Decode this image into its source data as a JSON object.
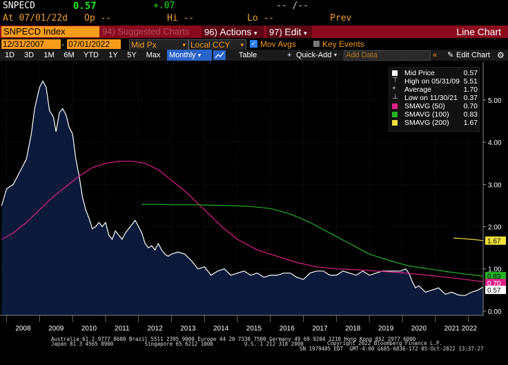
{
  "header": {
    "ticker": "SNPECD",
    "last": "0.57",
    "change": "+.07",
    "range_sep": "-- /--",
    "at_label": "At 07/01/22d",
    "op_label": "Op --",
    "hi_label": "Hi --",
    "lo_label": "Lo --",
    "prev_label": "Prev"
  },
  "toolbar": {
    "security": "SNPECD Index",
    "suggested": "Suggested Charts",
    "suggested_num": "94)",
    "actions_num": "96)",
    "actions": "Actions",
    "edit_num": "97)",
    "edit": "Edit",
    "chart_type": "Line Chart"
  },
  "options": {
    "start_date": "12/31/2007",
    "dash": "-",
    "end_date": "07/01/2022",
    "field": "Mid Px",
    "currency": "Local CCY",
    "mov_avgs": "Mov Avgs",
    "key_events": "Key Events"
  },
  "periods": {
    "p1d": "1D",
    "p3d": "3D",
    "p1m": "1M",
    "p6m": "6M",
    "pytd": "YTD",
    "p1y": "1Y",
    "p5y": "5Y",
    "pmax": "Max",
    "frequency": "Monthly",
    "table": "Table",
    "quick_add": "Quick-Add",
    "add_data_placeholder": "Add Data",
    "edit_chart": "Edit Chart"
  },
  "legend": {
    "mid": {
      "label": "Mid Price",
      "value": "0.57"
    },
    "high": {
      "label": "High on 05/31/09",
      "value": "5.51"
    },
    "avg": {
      "label": "Average",
      "value": "1.70"
    },
    "low": {
      "label": "Low on 11/30/21",
      "value": "0.37"
    },
    "s50": {
      "label": "SMAVG (50)",
      "value": "0.70"
    },
    "s100": {
      "label": "SMAVG (100)",
      "value": "0.83"
    },
    "s200": {
      "label": "SMAVG (200)",
      "value": "1.67"
    }
  },
  "footer": {
    "line1": "Australia 61 2 9777 8600 Brazil 5511 2395 9000 Europe 44 20 7330 7500 Germany 49 69 9204 1210 Hong Kong 852 2977 6000",
    "line2": "Japan 81 3 4565 8900          Singapore 65 6212 1000          U.S. 1 212 318 2000",
    "line3": "Copyright 2022 Bloomberg Finance L.P.",
    "line4": "SN 1979405 EDT  GMT-4:00 G685-6836-172 05-Oct-2022 13:37:27"
  },
  "colors": {
    "price_fill": "#0b1a3a",
    "price_line": "#ffffff",
    "s50": "#e0208a",
    "s100": "#24b324",
    "s200": "#f2e23a",
    "axis_text": "#ffffff"
  },
  "chart_data": {
    "type": "area",
    "ylim": [
      -0.1,
      5.9
    ],
    "xlim": [
      2007.8,
      2022.45
    ],
    "y_ticks": [
      "0.00",
      "1.00",
      "2.00",
      "3.00",
      "4.00",
      "5.00"
    ],
    "x_ticks": [
      "2008",
      "2009",
      "2010",
      "2011",
      "2012",
      "2013",
      "2014",
      "2015",
      "2016",
      "2017",
      "2018",
      "2019",
      "2020",
      "2021",
      "2022"
    ],
    "last_labels": [
      {
        "text": "1.67",
        "series": "SMAVG (200)"
      },
      {
        "text": "0.83",
        "series": "SMAVG (100)"
      },
      {
        "text": "0.70",
        "series": "SMAVG (50)"
      },
      {
        "text": "0.57",
        "series": "Mid Price"
      }
    ],
    "series": [
      {
        "name": "Mid Price",
        "x": [
          2007.85,
          2008.0,
          2008.2,
          2008.4,
          2008.6,
          2008.75,
          2008.85,
          2009.0,
          2009.1,
          2009.2,
          2009.3,
          2009.42,
          2009.5,
          2009.6,
          2009.7,
          2009.8,
          2009.9,
          2010.0,
          2010.1,
          2010.2,
          2010.3,
          2010.4,
          2010.5,
          2010.6,
          2010.7,
          2010.8,
          2010.9,
          2011.0,
          2011.1,
          2011.2,
          2011.3,
          2011.4,
          2011.5,
          2011.6,
          2011.7,
          2011.8,
          2011.9,
          2012.0,
          2012.1,
          2012.2,
          2012.3,
          2012.4,
          2012.5,
          2012.6,
          2012.7,
          2012.8,
          2012.9,
          2013.0,
          2013.2,
          2013.4,
          2013.6,
          2013.8,
          2014.0,
          2014.2,
          2014.4,
          2014.6,
          2014.8,
          2015.0,
          2015.2,
          2015.4,
          2015.6,
          2015.8,
          2016.0,
          2016.2,
          2016.4,
          2016.6,
          2016.8,
          2017.0,
          2017.2,
          2017.4,
          2017.6,
          2017.8,
          2018.0,
          2018.2,
          2018.4,
          2018.6,
          2018.8,
          2019.0,
          2019.2,
          2019.4,
          2019.6,
          2019.8,
          2019.95,
          2020.1,
          2020.2,
          2020.3,
          2020.4,
          2020.5,
          2020.7,
          2020.9,
          2021.1,
          2021.3,
          2021.5,
          2021.7,
          2021.9,
          2022.1,
          2022.3,
          2022.45
        ],
        "y": [
          2.5,
          2.9,
          3.0,
          3.3,
          3.6,
          4.2,
          4.8,
          5.3,
          5.45,
          5.3,
          4.75,
          4.6,
          4.25,
          4.7,
          4.8,
          4.65,
          4.35,
          4.2,
          3.6,
          3.2,
          2.7,
          2.4,
          2.2,
          1.95,
          2.0,
          2.1,
          2.0,
          2.1,
          1.8,
          1.7,
          1.9,
          1.8,
          1.7,
          1.85,
          1.95,
          2.05,
          2.15,
          2.0,
          1.85,
          1.6,
          1.5,
          1.55,
          1.45,
          1.6,
          1.45,
          1.35,
          1.3,
          1.35,
          1.4,
          1.35,
          1.2,
          1.0,
          1.05,
          0.85,
          0.95,
          1.0,
          0.85,
          0.9,
          0.95,
          0.85,
          0.9,
          0.8,
          0.85,
          0.85,
          0.9,
          0.9,
          0.8,
          0.75,
          0.9,
          0.95,
          0.95,
          0.85,
          0.85,
          0.95,
          0.9,
          0.85,
          0.95,
          0.85,
          0.9,
          0.95,
          0.95,
          0.95,
          0.95,
          1.0,
          0.9,
          0.7,
          0.55,
          0.6,
          0.45,
          0.5,
          0.55,
          0.4,
          0.45,
          0.38,
          0.37,
          0.45,
          0.5,
          0.57
        ]
      },
      {
        "name": "SMAVG (50)",
        "x": [
          2007.85,
          2008.2,
          2008.6,
          2009.0,
          2009.4,
          2009.8,
          2010.2,
          2010.6,
          2011.0,
          2011.4,
          2011.8,
          2012.2,
          2012.6,
          2013.0,
          2013.4,
          2013.8,
          2014.2,
          2014.6,
          2015.0,
          2015.6,
          2016.2,
          2016.8,
          2017.4,
          2018.0,
          2018.6,
          2019.2,
          2019.8,
          2020.4,
          2021.0,
          2021.6,
          2022.2,
          2022.45
        ],
        "y": [
          1.7,
          1.85,
          2.1,
          2.4,
          2.7,
          2.95,
          3.2,
          3.4,
          3.5,
          3.55,
          3.55,
          3.5,
          3.35,
          3.1,
          2.85,
          2.55,
          2.25,
          1.95,
          1.7,
          1.45,
          1.3,
          1.15,
          1.05,
          1.0,
          0.98,
          0.95,
          0.92,
          0.88,
          0.83,
          0.78,
          0.72,
          0.7
        ]
      },
      {
        "name": "SMAVG (100)",
        "x": [
          2012.1,
          2012.6,
          2013.0,
          2013.6,
          2014.2,
          2014.8,
          2015.4,
          2016.0,
          2016.6,
          2017.2,
          2017.8,
          2018.4,
          2019.0,
          2019.6,
          2020.2,
          2020.8,
          2021.4,
          2022.0,
          2022.45
        ],
        "y": [
          2.53,
          2.53,
          2.52,
          2.52,
          2.51,
          2.5,
          2.48,
          2.43,
          2.3,
          2.1,
          1.85,
          1.6,
          1.35,
          1.2,
          1.07,
          1.0,
          0.93,
          0.87,
          0.83
        ]
      },
      {
        "name": "SMAVG (200)",
        "x": [
          2021.55,
          2021.8,
          2022.1,
          2022.45
        ],
        "y": [
          1.73,
          1.72,
          1.7,
          1.67
        ]
      }
    ]
  }
}
